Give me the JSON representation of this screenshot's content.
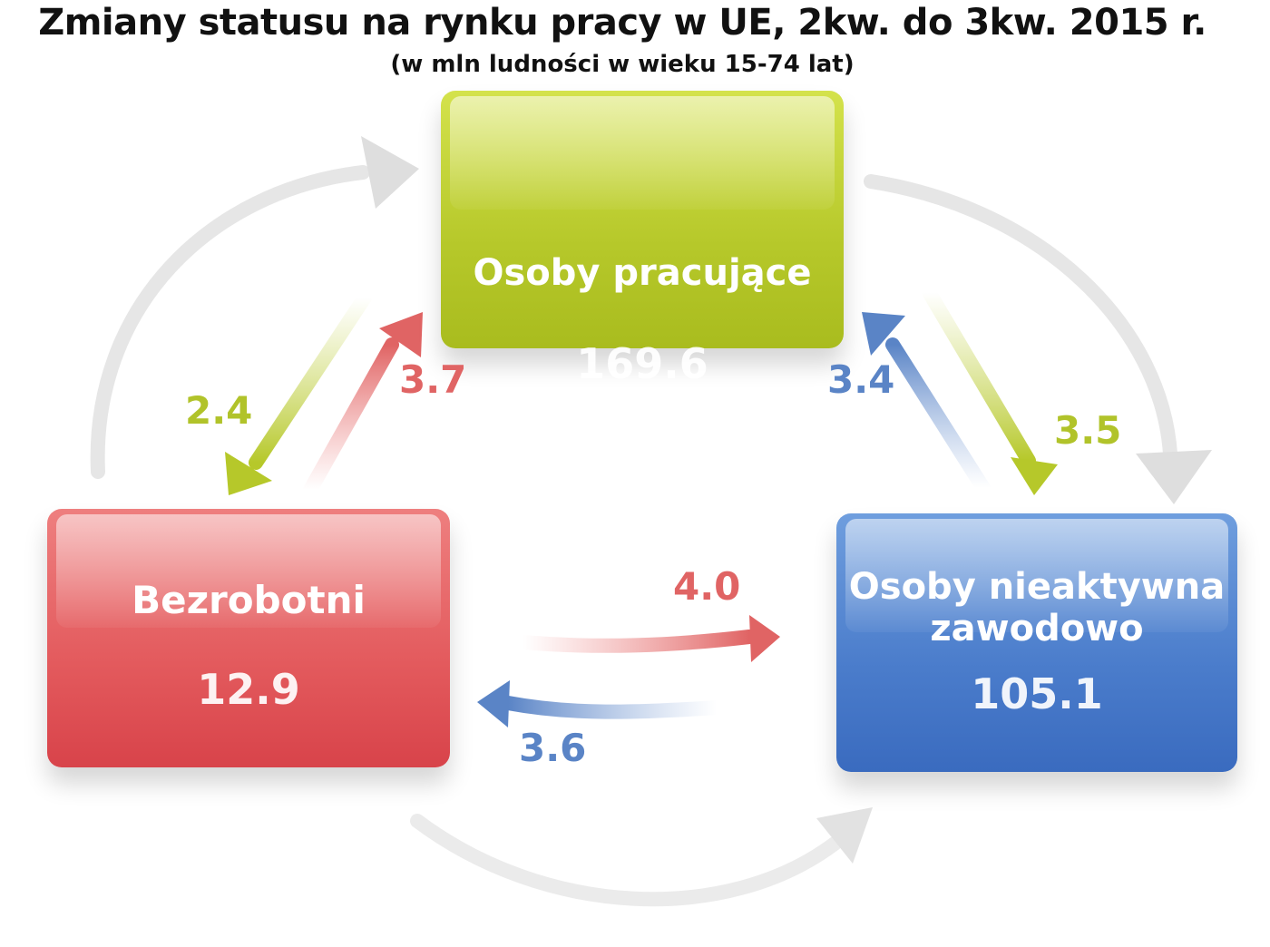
{
  "title": "Zmiany statusu na rynku pracy w UE, 2kw. do 3kw. 2015 r.",
  "subtitle": "(w mln ludności w wieku 15-74 lat)",
  "nodes": {
    "employed": {
      "label": "Osoby pracujące",
      "value": "169.6",
      "color": "#b6c82a"
    },
    "unemployed": {
      "label": "Bezrobotni",
      "value": "12.9",
      "color": "#e35a5d"
    },
    "inactive": {
      "label_line1": "Osoby nieaktywna",
      "label_line2": "zawodowo",
      "value": "105.1",
      "color": "#4a7ccb"
    }
  },
  "flows": {
    "employed_to_unemployed": {
      "value": "2.4",
      "color": "#b1c32a"
    },
    "unemployed_to_employed": {
      "value": "3.7",
      "color": "#e06464"
    },
    "inactive_to_employed": {
      "value": "3.4",
      "color": "#5a84c6"
    },
    "employed_to_inactive": {
      "value": "3.5",
      "color": "#b1c32a"
    },
    "unemployed_to_inactive": {
      "value": "4.0",
      "color": "#e06464"
    },
    "inactive_to_unemployed": {
      "value": "3.6",
      "color": "#5a84c6"
    }
  }
}
